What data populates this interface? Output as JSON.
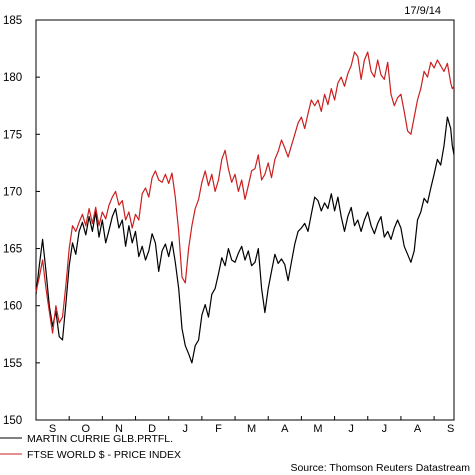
{
  "chart_data": {
    "type": "line",
    "date_label": "17/9/14",
    "source": "Source: Thomson Reuters Datastream",
    "ylim": [
      150,
      185
    ],
    "y_ticks": [
      150,
      155,
      160,
      165,
      170,
      175,
      180,
      185
    ],
    "x_range": [
      0,
      12.6
    ],
    "x_tick_labels": [
      "S",
      "O",
      "N",
      "D",
      "J",
      "F",
      "M",
      "A",
      "M",
      "J",
      "J",
      "A",
      "S"
    ],
    "grid": false,
    "legend_position": "bottom-left",
    "series": [
      {
        "name": "MARTIN CURRIE GLB.PRTFL.",
        "color": "#000000",
        "points": [
          [
            0.0,
            161.0
          ],
          [
            0.1,
            163.5
          ],
          [
            0.2,
            165.8
          ],
          [
            0.3,
            163.0
          ],
          [
            0.4,
            160.0
          ],
          [
            0.5,
            158.2
          ],
          [
            0.6,
            159.5
          ],
          [
            0.7,
            157.3
          ],
          [
            0.8,
            157.0
          ],
          [
            0.9,
            160.2
          ],
          [
            1.0,
            163.5
          ],
          [
            1.1,
            165.5
          ],
          [
            1.2,
            164.5
          ],
          [
            1.3,
            166.5
          ],
          [
            1.4,
            167.3
          ],
          [
            1.5,
            166.2
          ],
          [
            1.6,
            167.8
          ],
          [
            1.7,
            166.5
          ],
          [
            1.8,
            168.2
          ],
          [
            1.9,
            166.0
          ],
          [
            2.0,
            167.5
          ],
          [
            2.1,
            165.5
          ],
          [
            2.2,
            166.6
          ],
          [
            2.3,
            167.8
          ],
          [
            2.4,
            168.5
          ],
          [
            2.5,
            166.8
          ],
          [
            2.6,
            167.5
          ],
          [
            2.7,
            165.2
          ],
          [
            2.8,
            167.0
          ],
          [
            2.9,
            165.5
          ],
          [
            3.0,
            166.5
          ],
          [
            3.1,
            164.3
          ],
          [
            3.2,
            165.2
          ],
          [
            3.3,
            164.0
          ],
          [
            3.4,
            164.8
          ],
          [
            3.5,
            166.3
          ],
          [
            3.6,
            165.5
          ],
          [
            3.7,
            163.0
          ],
          [
            3.8,
            164.8
          ],
          [
            3.9,
            165.4
          ],
          [
            4.0,
            164.3
          ],
          [
            4.1,
            165.6
          ],
          [
            4.2,
            163.8
          ],
          [
            4.3,
            161.5
          ],
          [
            4.4,
            158.0
          ],
          [
            4.5,
            156.5
          ],
          [
            4.6,
            155.8
          ],
          [
            4.7,
            155.0
          ],
          [
            4.8,
            156.5
          ],
          [
            4.9,
            157.0
          ],
          [
            5.0,
            159.2
          ],
          [
            5.1,
            160.1
          ],
          [
            5.2,
            159.0
          ],
          [
            5.3,
            161.0
          ],
          [
            5.4,
            161.5
          ],
          [
            5.5,
            162.8
          ],
          [
            5.6,
            164.2
          ],
          [
            5.7,
            163.5
          ],
          [
            5.8,
            165.0
          ],
          [
            5.9,
            164.0
          ],
          [
            6.0,
            163.8
          ],
          [
            6.1,
            164.6
          ],
          [
            6.2,
            165.2
          ],
          [
            6.3,
            164.0
          ],
          [
            6.4,
            164.8
          ],
          [
            6.5,
            163.5
          ],
          [
            6.6,
            163.8
          ],
          [
            6.7,
            165.0
          ],
          [
            6.8,
            161.5
          ],
          [
            6.9,
            159.4
          ],
          [
            7.0,
            161.5
          ],
          [
            7.1,
            163.0
          ],
          [
            7.2,
            164.5
          ],
          [
            7.3,
            163.7
          ],
          [
            7.4,
            164.1
          ],
          [
            7.5,
            163.6
          ],
          [
            7.6,
            162.2
          ],
          [
            7.7,
            163.8
          ],
          [
            7.8,
            165.4
          ],
          [
            7.9,
            166.5
          ],
          [
            8.0,
            166.8
          ],
          [
            8.1,
            167.2
          ],
          [
            8.2,
            166.5
          ],
          [
            8.3,
            168.0
          ],
          [
            8.4,
            169.5
          ],
          [
            8.5,
            169.2
          ],
          [
            8.6,
            168.3
          ],
          [
            8.7,
            169.0
          ],
          [
            8.8,
            168.5
          ],
          [
            8.9,
            169.8
          ],
          [
            9.0,
            168.3
          ],
          [
            9.1,
            169.5
          ],
          [
            9.2,
            167.8
          ],
          [
            9.3,
            166.5
          ],
          [
            9.4,
            167.8
          ],
          [
            9.5,
            168.6
          ],
          [
            9.6,
            167.0
          ],
          [
            9.7,
            167.5
          ],
          [
            9.8,
            166.5
          ],
          [
            9.9,
            167.5
          ],
          [
            10.0,
            168.2
          ],
          [
            10.1,
            167.0
          ],
          [
            10.2,
            166.3
          ],
          [
            10.3,
            167.2
          ],
          [
            10.4,
            167.8
          ],
          [
            10.5,
            166.0
          ],
          [
            10.6,
            166.5
          ],
          [
            10.7,
            165.8
          ],
          [
            10.8,
            166.8
          ],
          [
            10.9,
            167.5
          ],
          [
            11.0,
            166.8
          ],
          [
            11.1,
            165.2
          ],
          [
            11.2,
            164.5
          ],
          [
            11.3,
            163.8
          ],
          [
            11.4,
            164.8
          ],
          [
            11.5,
            167.5
          ],
          [
            11.6,
            168.2
          ],
          [
            11.7,
            169.4
          ],
          [
            11.8,
            169.0
          ],
          [
            11.9,
            170.3
          ],
          [
            12.0,
            171.5
          ],
          [
            12.1,
            172.8
          ],
          [
            12.2,
            172.3
          ],
          [
            12.3,
            174.0
          ],
          [
            12.4,
            176.5
          ],
          [
            12.5,
            175.5
          ],
          [
            12.55,
            174.0
          ],
          [
            12.6,
            173.2
          ]
        ]
      },
      {
        "name": "FTSE WORLD $ - PRICE INDEX",
        "color": "#cc1f1f",
        "points": [
          [
            0.0,
            161.2
          ],
          [
            0.1,
            162.5
          ],
          [
            0.2,
            164.0
          ],
          [
            0.3,
            161.5
          ],
          [
            0.4,
            159.5
          ],
          [
            0.5,
            157.6
          ],
          [
            0.6,
            160.0
          ],
          [
            0.7,
            158.5
          ],
          [
            0.8,
            159.0
          ],
          [
            0.9,
            161.8
          ],
          [
            1.0,
            165.0
          ],
          [
            1.1,
            167.0
          ],
          [
            1.2,
            166.5
          ],
          [
            1.3,
            167.3
          ],
          [
            1.4,
            168.0
          ],
          [
            1.5,
            167.0
          ],
          [
            1.6,
            168.5
          ],
          [
            1.7,
            167.2
          ],
          [
            1.8,
            168.6
          ],
          [
            1.9,
            167.0
          ],
          [
            2.0,
            168.2
          ],
          [
            2.1,
            167.6
          ],
          [
            2.2,
            168.8
          ],
          [
            2.3,
            169.5
          ],
          [
            2.4,
            170.0
          ],
          [
            2.5,
            168.8
          ],
          [
            2.6,
            169.2
          ],
          [
            2.7,
            167.5
          ],
          [
            2.8,
            168.2
          ],
          [
            2.9,
            166.8
          ],
          [
            3.0,
            168.0
          ],
          [
            3.1,
            167.5
          ],
          [
            3.2,
            169.8
          ],
          [
            3.3,
            170.3
          ],
          [
            3.4,
            169.5
          ],
          [
            3.5,
            171.2
          ],
          [
            3.6,
            171.8
          ],
          [
            3.7,
            171.0
          ],
          [
            3.8,
            170.8
          ],
          [
            3.9,
            171.5
          ],
          [
            4.0,
            170.7
          ],
          [
            4.1,
            171.6
          ],
          [
            4.2,
            169.5
          ],
          [
            4.3,
            166.5
          ],
          [
            4.4,
            162.5
          ],
          [
            4.5,
            162.0
          ],
          [
            4.6,
            165.0
          ],
          [
            4.7,
            167.0
          ],
          [
            4.8,
            168.5
          ],
          [
            4.9,
            169.3
          ],
          [
            5.0,
            170.8
          ],
          [
            5.1,
            171.8
          ],
          [
            5.2,
            170.5
          ],
          [
            5.3,
            171.5
          ],
          [
            5.4,
            170.0
          ],
          [
            5.5,
            171.0
          ],
          [
            5.6,
            172.8
          ],
          [
            5.7,
            173.6
          ],
          [
            5.8,
            172.0
          ],
          [
            5.9,
            170.8
          ],
          [
            6.0,
            171.5
          ],
          [
            6.1,
            170.0
          ],
          [
            6.2,
            171.0
          ],
          [
            6.3,
            169.3
          ],
          [
            6.4,
            170.5
          ],
          [
            6.5,
            171.8
          ],
          [
            6.6,
            172.0
          ],
          [
            6.7,
            173.2
          ],
          [
            6.8,
            171.0
          ],
          [
            6.9,
            171.5
          ],
          [
            7.0,
            172.5
          ],
          [
            7.1,
            171.2
          ],
          [
            7.2,
            172.8
          ],
          [
            7.3,
            173.5
          ],
          [
            7.4,
            174.5
          ],
          [
            7.5,
            173.8
          ],
          [
            7.6,
            173.0
          ],
          [
            7.7,
            174.0
          ],
          [
            7.8,
            175.0
          ],
          [
            7.9,
            176.0
          ],
          [
            8.0,
            176.5
          ],
          [
            8.1,
            175.5
          ],
          [
            8.2,
            176.8
          ],
          [
            8.3,
            178.0
          ],
          [
            8.4,
            177.5
          ],
          [
            8.5,
            178.0
          ],
          [
            8.6,
            177.0
          ],
          [
            8.7,
            178.5
          ],
          [
            8.8,
            177.6
          ],
          [
            8.9,
            179.0
          ],
          [
            9.0,
            178.0
          ],
          [
            9.1,
            179.5
          ],
          [
            9.2,
            180.0
          ],
          [
            9.3,
            179.2
          ],
          [
            9.4,
            180.3
          ],
          [
            9.5,
            181.0
          ],
          [
            9.6,
            182.2
          ],
          [
            9.7,
            181.8
          ],
          [
            9.8,
            179.8
          ],
          [
            9.9,
            181.5
          ],
          [
            10.0,
            182.2
          ],
          [
            10.1,
            180.5
          ],
          [
            10.2,
            180.0
          ],
          [
            10.3,
            181.5
          ],
          [
            10.4,
            180.2
          ],
          [
            10.5,
            179.8
          ],
          [
            10.6,
            181.3
          ],
          [
            10.7,
            178.5
          ],
          [
            10.8,
            177.5
          ],
          [
            10.9,
            178.2
          ],
          [
            11.0,
            178.5
          ],
          [
            11.1,
            177.0
          ],
          [
            11.2,
            175.3
          ],
          [
            11.3,
            175.0
          ],
          [
            11.4,
            176.5
          ],
          [
            11.5,
            178.0
          ],
          [
            11.6,
            179.0
          ],
          [
            11.7,
            180.5
          ],
          [
            11.8,
            180.0
          ],
          [
            11.9,
            181.3
          ],
          [
            12.0,
            180.8
          ],
          [
            12.1,
            181.5
          ],
          [
            12.2,
            181.0
          ],
          [
            12.3,
            180.5
          ],
          [
            12.4,
            181.2
          ],
          [
            12.5,
            179.5
          ],
          [
            12.55,
            179.0
          ],
          [
            12.6,
            179.2
          ]
        ]
      }
    ]
  }
}
